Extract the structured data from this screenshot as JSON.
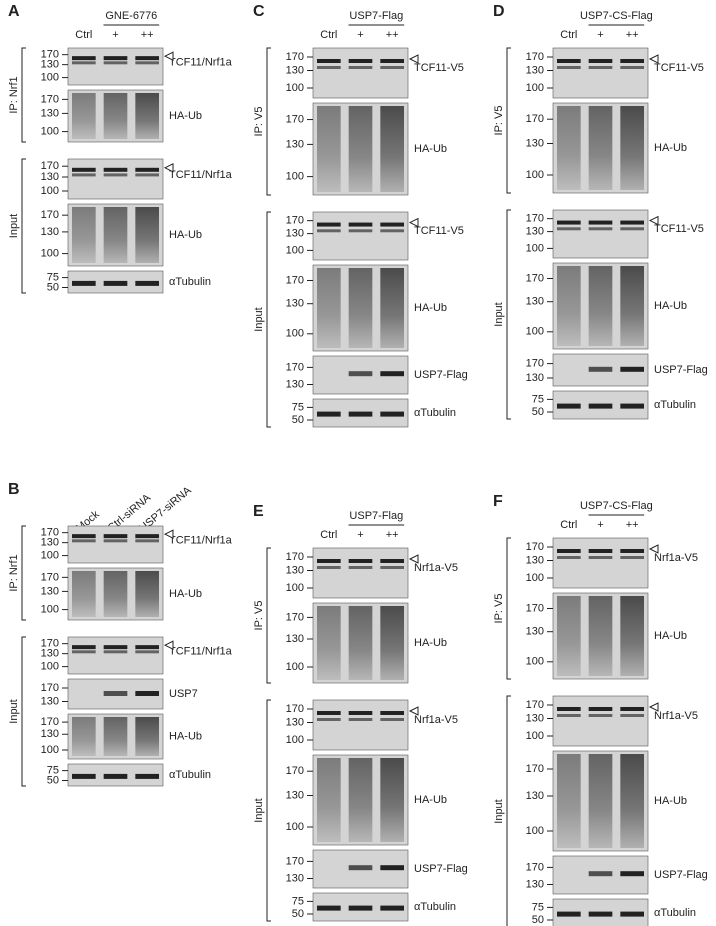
{
  "panels": [
    {
      "letter": "A",
      "treatment": "GNE-6776",
      "lanes": [
        "Ctrl",
        "+",
        "++"
      ],
      "groups": [
        {
          "label": "IP: Nrf1",
          "blots": [
            {
              "markers": [
                "170",
                "130",
                "100"
              ],
              "label": "TCF11/Nrf1a"
            },
            {
              "markers": [
                "170",
                "130",
                "100"
              ],
              "label": "HA-Ub"
            }
          ]
        },
        {
          "label": "Input",
          "blots": [
            {
              "markers": [
                "170",
                "130",
                "100"
              ],
              "label": "TCF11/Nrf1a"
            },
            {
              "markers": [
                "170",
                "130",
                "100"
              ],
              "label": "HA-Ub"
            },
            {
              "markers": [
                "75",
                "50"
              ],
              "label": "αTubulin"
            }
          ]
        }
      ]
    },
    {
      "letter": "C",
      "treatment": "USP7-Flag",
      "lanes": [
        "Ctrl",
        "+",
        "++"
      ],
      "groups": [
        {
          "label": "IP: V5",
          "blots": [
            {
              "markers": [
                "170",
                "130",
                "100"
              ],
              "label": "TCF11-V5"
            },
            {
              "markers": [
                "170",
                "130",
                "100"
              ],
              "label": "HA-Ub"
            }
          ]
        },
        {
          "label": "Input",
          "blots": [
            {
              "markers": [
                "170",
                "130",
                "100"
              ],
              "label": "TCF11-V5"
            },
            {
              "markers": [
                "170",
                "130",
                "100"
              ],
              "label": "HA-Ub"
            },
            {
              "markers": [
                "170",
                "130"
              ],
              "label": "USP7-Flag"
            },
            {
              "markers": [
                "75",
                "50"
              ],
              "label": "αTubulin"
            }
          ]
        }
      ]
    },
    {
      "letter": "D",
      "treatment": "USP7-CS-Flag",
      "lanes": [
        "Ctrl",
        "+",
        "++"
      ],
      "groups": [
        {
          "label": "IP: V5",
          "blots": [
            {
              "markers": [
                "170",
                "130",
                "100"
              ],
              "label": "TCF11-V5"
            },
            {
              "markers": [
                "170",
                "130",
                "100"
              ],
              "label": "HA-Ub"
            }
          ]
        },
        {
          "label": "Input",
          "blots": [
            {
              "markers": [
                "170",
                "130",
                "100"
              ],
              "label": "TCF11-V5"
            },
            {
              "markers": [
                "170",
                "130",
                "100"
              ],
              "label": "HA-Ub"
            },
            {
              "markers": [
                "170",
                "130"
              ],
              "label": "USP7-Flag"
            },
            {
              "markers": [
                "75",
                "50"
              ],
              "label": "αTubulin"
            }
          ]
        }
      ]
    },
    {
      "letter": "B",
      "lanes": [
        "Mock",
        "Ctrl-siRNA",
        "USP7-siRNA"
      ],
      "groups": [
        {
          "label": "IP: Nrf1",
          "blots": [
            {
              "markers": [
                "170",
                "130",
                "100"
              ],
              "label": "TCF11/Nrf1a"
            },
            {
              "markers": [
                "170",
                "130",
                "100"
              ],
              "label": "HA-Ub"
            }
          ]
        },
        {
          "label": "Input",
          "blots": [
            {
              "markers": [
                "170",
                "130",
                "100"
              ],
              "label": "TCF11/Nrf1a"
            },
            {
              "markers": [
                "170",
                "130"
              ],
              "label": "USP7"
            },
            {
              "markers": [
                "170",
                "130",
                "100"
              ],
              "label": "HA-Ub"
            },
            {
              "markers": [
                "75",
                "50"
              ],
              "label": "αTubulin"
            }
          ]
        }
      ]
    },
    {
      "letter": "E",
      "treatment": "USP7-Flag",
      "lanes": [
        "Ctrl",
        "+",
        "++"
      ],
      "groups": [
        {
          "label": "IP: V5",
          "blots": [
            {
              "markers": [
                "170",
                "130",
                "100"
              ],
              "label": "Nrf1a-V5"
            },
            {
              "markers": [
                "170",
                "130",
                "100"
              ],
              "label": "HA-Ub"
            }
          ]
        },
        {
          "label": "Input",
          "blots": [
            {
              "markers": [
                "170",
                "130",
                "100"
              ],
              "label": "Nrf1a-V5"
            },
            {
              "markers": [
                "170",
                "130",
                "100"
              ],
              "label": "HA-Ub"
            },
            {
              "markers": [
                "170",
                "130"
              ],
              "label": "USP7-Flag"
            },
            {
              "markers": [
                "75",
                "50"
              ],
              "label": "αTubulin"
            }
          ]
        }
      ]
    },
    {
      "letter": "F",
      "treatment": "USP7-CS-Flag",
      "lanes": [
        "Ctrl",
        "+",
        "++"
      ],
      "groups": [
        {
          "label": "IP: V5",
          "blots": [
            {
              "markers": [
                "170",
                "130",
                "100"
              ],
              "label": "Nrf1a-V5"
            },
            {
              "markers": [
                "170",
                "130",
                "100"
              ],
              "label": "HA-Ub"
            }
          ]
        },
        {
          "label": "Input",
          "blots": [
            {
              "markers": [
                "170",
                "130",
                "100"
              ],
              "label": "Nrf1a-V5"
            },
            {
              "markers": [
                "170",
                "130",
                "100"
              ],
              "label": "HA-Ub"
            },
            {
              "markers": [
                "170",
                "130"
              ],
              "label": "USP7-Flag"
            },
            {
              "markers": [
                "75",
                "50"
              ],
              "label": "αTubulin"
            }
          ]
        }
      ]
    }
  ]
}
